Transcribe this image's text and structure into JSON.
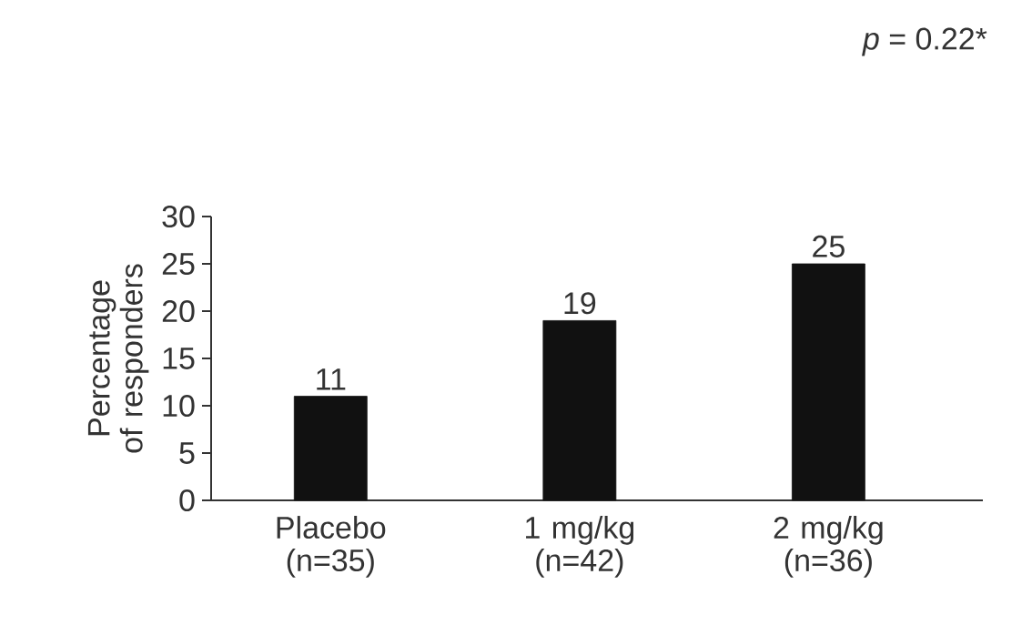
{
  "chart_data": {
    "type": "bar",
    "ylabel": "Percentage of responders",
    "categories": [
      "Placebo (n=35)",
      "1 mg/kg (n=42)",
      "2 mg/kg (n=36)"
    ],
    "values": [
      11,
      19,
      25
    ],
    "color": "#111111",
    "data_labels": true,
    "ylim": [
      0,
      30
    ],
    "yticks": [
      0,
      5,
      10,
      15,
      20,
      25,
      30
    ],
    "annotations": [
      "*p* = 0.22*"
    ]
  }
}
